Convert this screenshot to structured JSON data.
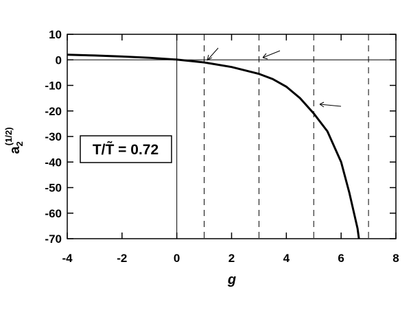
{
  "chart_data": {
    "type": "line",
    "xlabel": "g",
    "ylabel": {
      "base": "a",
      "sub": "2",
      "sup": "(1/2)"
    },
    "annotation": "T/T̃ = 0.72",
    "xlim": [
      -4,
      8
    ],
    "xticks": [
      -4,
      -2,
      0,
      2,
      4,
      6,
      8
    ],
    "ylim": [
      -70,
      10
    ],
    "yticks": [
      -70,
      -60,
      -50,
      -40,
      -30,
      -20,
      -10,
      0,
      10
    ],
    "ref_x": [
      0
    ],
    "ref_y": [
      0
    ],
    "dashed_x": [
      1,
      3,
      5,
      7
    ],
    "series": [
      {
        "name": "a2",
        "color": "#000000",
        "x": [
          -4,
          -3,
          -2,
          -1,
          0,
          1,
          2,
          3,
          3.5,
          4,
          4.5,
          5,
          5.5,
          6,
          6.3,
          6.6,
          6.65
        ],
        "values": [
          2.0,
          1.7,
          1.3,
          0.8,
          0.1,
          -1,
          -2.8,
          -5.5,
          -7.5,
          -10.5,
          -15,
          -21,
          -28,
          -40,
          -52,
          -66,
          -70
        ]
      }
    ]
  }
}
